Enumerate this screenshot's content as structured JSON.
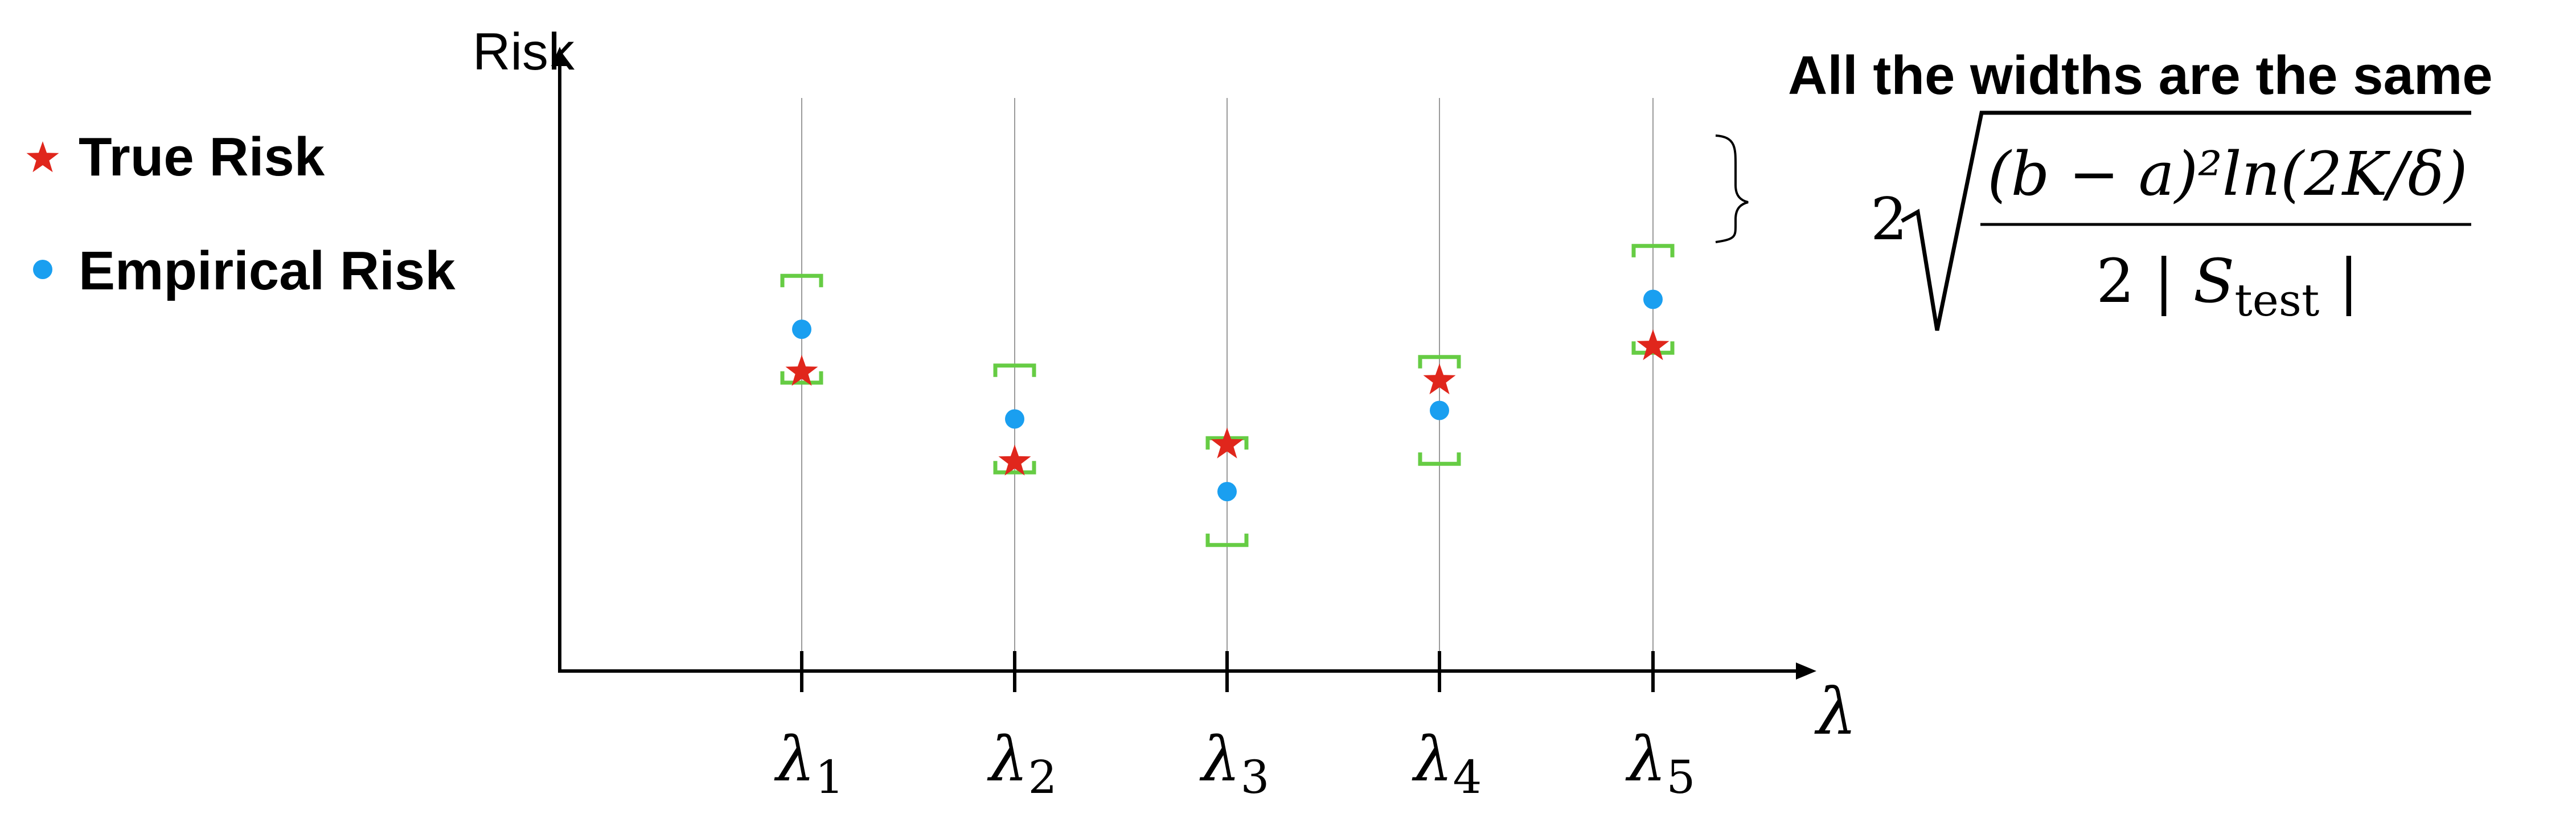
{
  "chart_data": {
    "type": "scatter",
    "title": "",
    "xlabel": "λ",
    "ylabel": "Risk",
    "categories": [
      "λ1",
      "λ2",
      "λ3",
      "λ4",
      "λ5"
    ],
    "tick_labels": [
      {
        "base": "λ",
        "sub": "1"
      },
      {
        "base": "λ",
        "sub": "2"
      },
      {
        "base": "λ",
        "sub": "3"
      },
      {
        "base": "λ",
        "sub": "4"
      },
      {
        "base": "λ",
        "sub": "5"
      }
    ],
    "ylim": [
      0,
      12
    ],
    "series": [
      {
        "name": "True Risk",
        "marker": "star",
        "color": "#e0261c",
        "values": [
          7.0,
          4.9,
          5.3,
          6.8,
          7.6
        ]
      },
      {
        "name": "Empirical Risk",
        "marker": "circle",
        "color": "#1a9ff0",
        "values": [
          8.0,
          5.9,
          4.2,
          6.1,
          8.7
        ]
      }
    ],
    "interval_half_width": 1.25,
    "interval_color": "#66cc44",
    "legend": "top-left",
    "grid": false
  },
  "annotation": {
    "heading": "All the widths are the same",
    "formula": {
      "coef": "2",
      "numerator": "(b − a)²ln(2K/δ)",
      "denominator_prefix": "2 | ",
      "denominator_var": "S",
      "denominator_sub": "test",
      "denominator_suffix": " |"
    }
  }
}
